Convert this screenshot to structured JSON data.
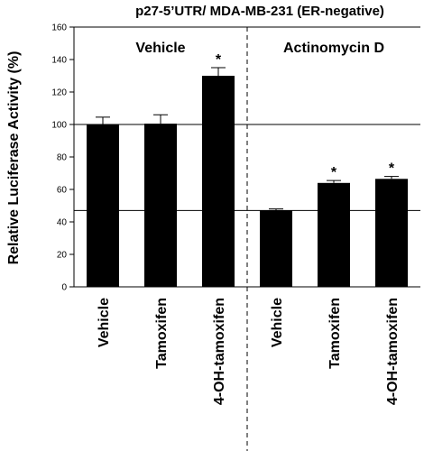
{
  "chart_data": {
    "type": "bar",
    "title": "p27-5’UTR/ MDA-MB-231 (ER-negative)",
    "y_label": "Relative Luciferase Activity (%)",
    "groups": [
      "Vehicle",
      "Actinomycin D"
    ],
    "categories": [
      "Vehicle",
      "Tamoxifen",
      "4-OH-tamoxifen",
      "Vehicle",
      "Tamoxifen",
      "4-OH-tamoxifen"
    ],
    "values": [
      100,
      100.5,
      130,
      47,
      64,
      66.5
    ],
    "errors": [
      4.5,
      5.5,
      5,
      1,
      1.5,
      1.5
    ],
    "markers": [
      null,
      null,
      "*",
      null,
      "*",
      "*"
    ],
    "reference_lines": [
      100,
      47
    ],
    "color": "#000000",
    "ylim": [
      0,
      160
    ],
    "yticks": [
      0,
      20,
      40,
      60,
      80,
      100,
      120,
      140,
      160
    ]
  }
}
